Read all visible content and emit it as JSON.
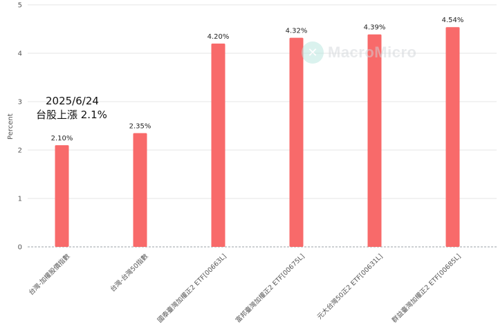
{
  "annotation": {
    "line1": "2025/6/24",
    "line2": "台股上漲 2.1%"
  },
  "watermark": {
    "text": "MacroMicro",
    "icon": "macromicro-logo-icon"
  },
  "colors": {
    "bar": "#f86a6a",
    "grid": "#e6e6e6",
    "zero_line": "#9aa0a6",
    "label": "#222222",
    "tick": "#555555"
  },
  "chart_data": {
    "type": "bar",
    "categories": [
      "台灣-加權股價指數",
      "台灣-台灣50指數",
      "國泰臺灣加權正2 ETF[00663L]",
      "富邦臺灣加權正2 ETF[00675L]",
      "元大台灣50正2 ETF[00631L]",
      "群益臺灣加權正2 ETF[00685L]"
    ],
    "values": [
      2.1,
      2.35,
      4.2,
      4.32,
      4.39,
      4.54
    ],
    "data_labels": [
      "2.10%",
      "2.35%",
      "4.20%",
      "4.32%",
      "4.39%",
      "4.54%"
    ],
    "title": "",
    "xlabel": "",
    "ylabel": "Percent",
    "ylim": [
      0,
      5
    ],
    "yticks": [
      0,
      1,
      2,
      3,
      4,
      5
    ],
    "grid": true,
    "legend": "none"
  }
}
